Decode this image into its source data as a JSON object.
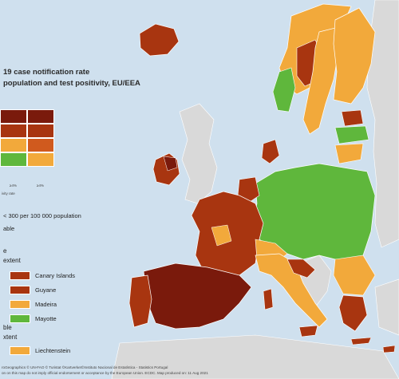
{
  "legend": {
    "title_line1": "19 case notification rate",
    "title_line2": "population and test positivity, EU/EEA",
    "matrix_axis_left": "≥4%",
    "matrix_axis_right": "≥4%",
    "matrix_axis_caption": "ivity rate",
    "note_rate": "< 300 per 100 000 population",
    "note_data": "able",
    "section1_title": "e",
    "section1_sub": "extent",
    "section1_items": [
      {
        "label": "Canary Islands",
        "color": "#a83510"
      },
      {
        "label": "Guyane",
        "color": "#a83510"
      },
      {
        "label": "Madeira",
        "color": "#f2a93b"
      },
      {
        "label": "Mayotte",
        "color": "#5fb73c"
      }
    ],
    "section2_title": "ble",
    "section2_sub": "xtent",
    "section2_items": [
      {
        "label": "Liechtenstein",
        "color": "#f2a93b"
      }
    ],
    "matrix_colors": [
      "#7a1a0c",
      "#7a1a0c",
      "#a83510",
      "#a83510",
      "#f2a93b",
      "#d05a1e",
      "#5fb73c",
      "#f2a93b"
    ]
  },
  "footer_line1": "roGeographics © UN-FAO © Turistat ©Kartverket©Instituto Nacional de Estatística - Statistics Portugal",
  "footer_line2": "on on this map do not imply official endorsement or acceptance by the European Union. ECDC. Map produced on: 11 Aug 2021",
  "colors": {
    "sea": "#cfe0ee",
    "non_eu": "#d9d9d9",
    "dark_red": "#7a1a0c",
    "red": "#a83510",
    "orange": "#f2a93b",
    "green": "#5fb73c"
  }
}
